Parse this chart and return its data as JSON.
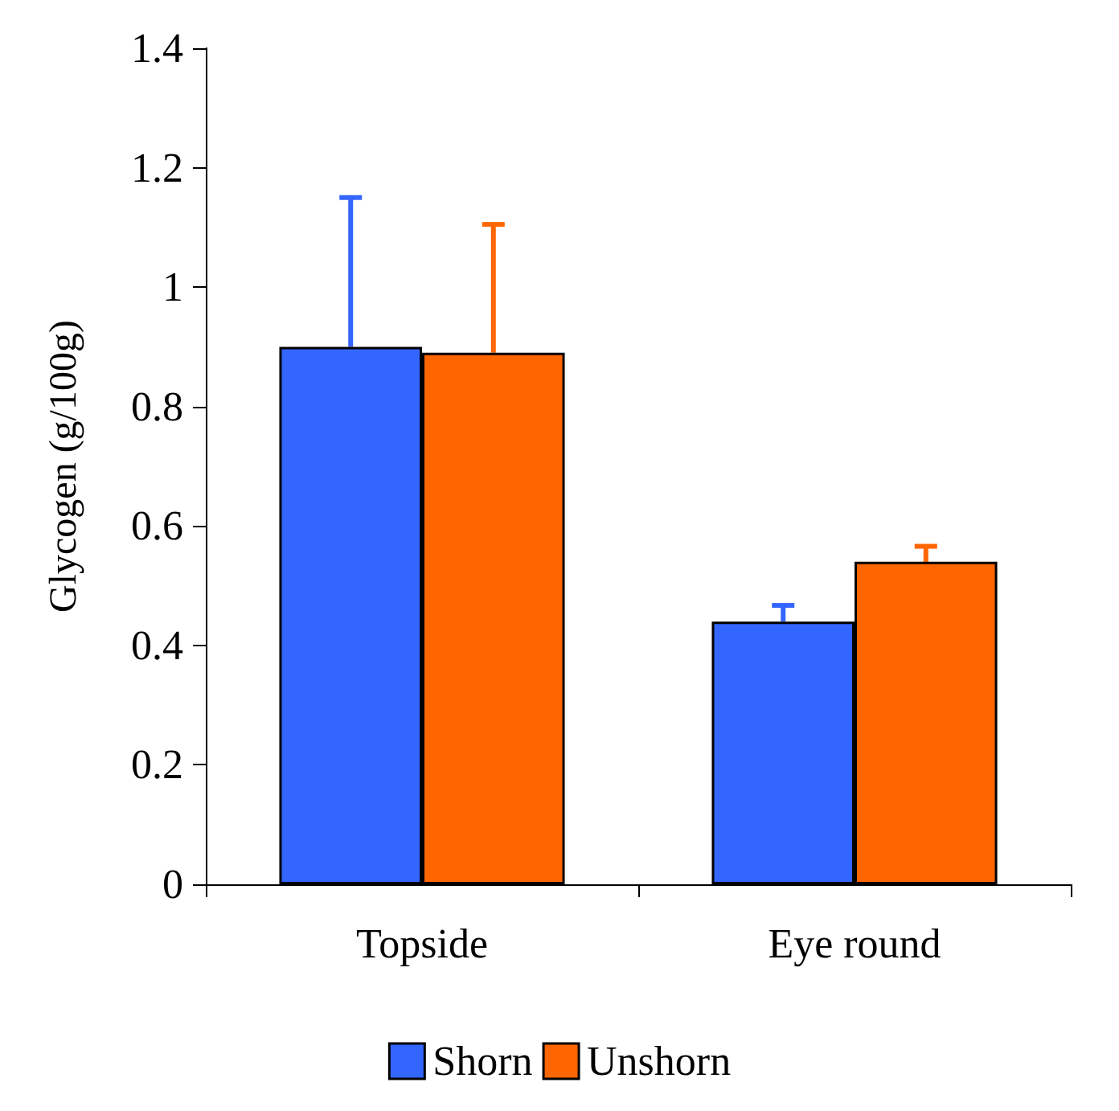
{
  "chart_data": {
    "type": "bar",
    "ylabel": "Glycogen (g/100g)",
    "categories": [
      "Topside",
      "Eye round"
    ],
    "series": [
      {
        "name": "Shorn",
        "color": "#3366ff",
        "values": [
          0.9,
          0.44
        ],
        "errors": [
          [
            0.9,
            1.15
          ],
          [
            0.44,
            0.467
          ]
        ]
      },
      {
        "name": "Unshorn",
        "color": "#ff6600",
        "values": [
          0.89,
          0.54
        ],
        "errors": [
          [
            0.89,
            1.105
          ],
          [
            0.54,
            0.566
          ]
        ]
      }
    ],
    "ylim": [
      0,
      1.4
    ],
    "yticks": [
      0,
      0.2,
      0.4,
      0.6,
      0.8,
      1,
      1.2,
      1.4
    ],
    "grid": false,
    "legend": "bottom"
  }
}
